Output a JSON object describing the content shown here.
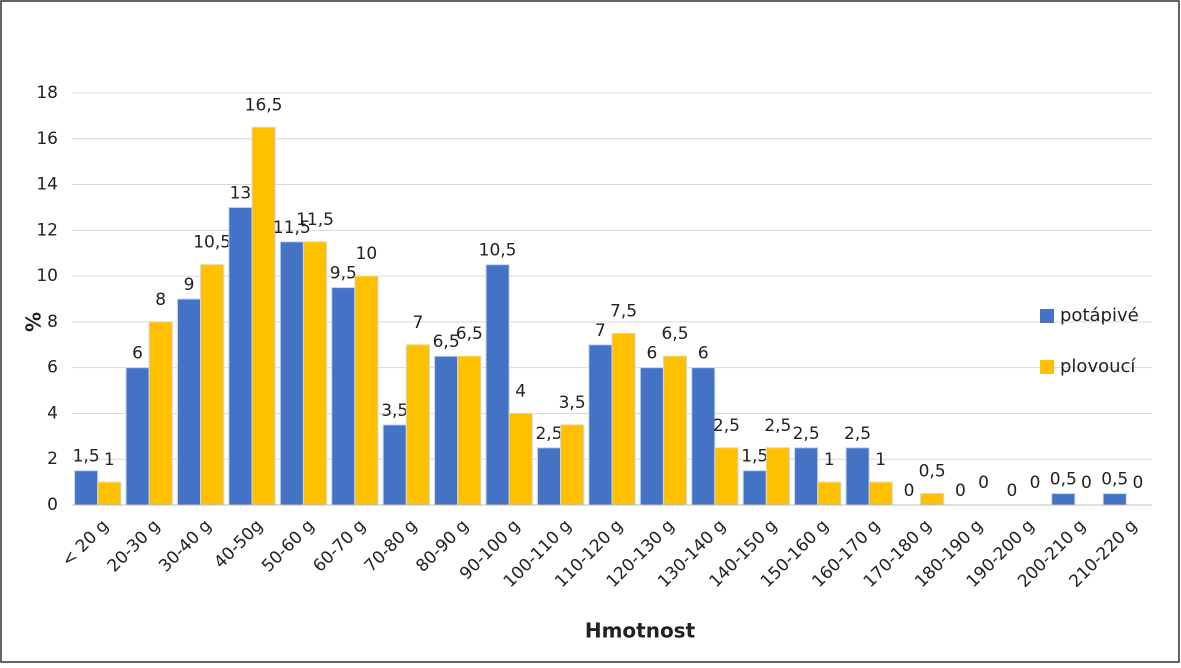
{
  "chart_data": {
    "type": "bar",
    "x_label": "Hmotnost",
    "y_label": "%",
    "categories": [
      "< 20 g",
      "20-30 g",
      "30-40 g",
      "40-50g",
      "50-60 g",
      "60-70 g",
      "70-80 g",
      "80-90 g",
      "90-100 g",
      "100-110 g",
      "110-120 g",
      "120-130 g",
      "130-140 g",
      "140-150 g",
      "150-160 g",
      "160-170 g",
      "170-180 g",
      "180-190 g",
      "190-200 g",
      "200-210 g",
      "210-220 g"
    ],
    "series": [
      {
        "name": "potápivé",
        "color": "#4472c4",
        "values": [
          1.5,
          6,
          9,
          13,
          11.5,
          9.5,
          3.5,
          6.5,
          10.5,
          2.5,
          7,
          6,
          6,
          1.5,
          2.5,
          2.5,
          0,
          0,
          0,
          0.5,
          0.5
        ],
        "value_labels": [
          "1,5",
          "6",
          "9",
          "13",
          "11,5",
          "9,5",
          "3,5",
          "6,5",
          "10,5",
          "2,5",
          "7",
          "6",
          "6",
          "1,5",
          "2,5",
          "2,5",
          "0",
          "0",
          "0",
          "0,5",
          "0,5"
        ]
      },
      {
        "name": "plovoucí",
        "color": "#ffc000",
        "values": [
          1,
          8,
          10.5,
          16.5,
          11.5,
          10,
          7,
          6.5,
          4,
          3.5,
          7.5,
          6.5,
          2.5,
          2.5,
          1,
          1,
          0.5,
          0,
          0,
          0,
          0
        ],
        "value_labels": [
          "1",
          "8",
          "10,5",
          "16,5",
          "11,5",
          "10",
          "7",
          "6,5",
          "4",
          "3,5",
          "7,5",
          "6,5",
          "2,5",
          "2,5",
          "1",
          "1",
          "0,5",
          "0",
          "0",
          "0",
          "0"
        ]
      }
    ],
    "ylim": [
      0,
      18
    ],
    "yticks": [
      0,
      2,
      4,
      6,
      8,
      10,
      12,
      14,
      16,
      18
    ],
    "grid": true,
    "legend": "right"
  }
}
